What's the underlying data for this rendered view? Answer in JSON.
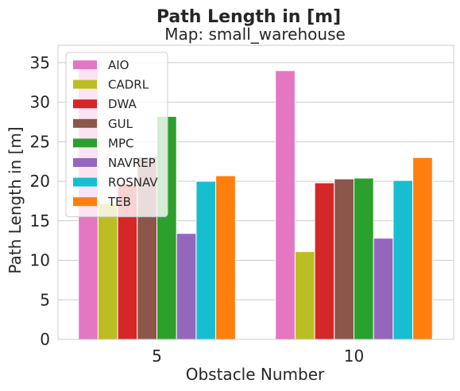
{
  "chart_data": {
    "type": "bar",
    "title": "Path Length in [m]",
    "subtitle": "Map: small_warehouse",
    "xlabel": "Obstacle Number",
    "ylabel": "Path Length in [m]",
    "categories": [
      "5",
      "10"
    ],
    "ylim": [
      0,
      37.2
    ],
    "yticks": [
      0,
      5,
      10,
      15,
      20,
      25,
      30,
      35
    ],
    "grid": true,
    "legend_position": "top-left",
    "series": [
      {
        "name": "AIO",
        "color": "#e377c2",
        "values": [
          34.3,
          34.0
        ]
      },
      {
        "name": "CADRL",
        "color": "#bcbd22",
        "values": [
          17.2,
          11.1
        ]
      },
      {
        "name": "DWA",
        "color": "#d62728",
        "values": [
          19.7,
          19.8
        ]
      },
      {
        "name": "GUL",
        "color": "#8c564b",
        "values": [
          23.1,
          20.3
        ]
      },
      {
        "name": "MPC",
        "color": "#2ca02c",
        "values": [
          28.2,
          20.4
        ]
      },
      {
        "name": "NAVREP",
        "color": "#9467bd",
        "values": [
          13.4,
          12.8
        ]
      },
      {
        "name": "ROSNAV",
        "color": "#17becf",
        "values": [
          20.0,
          20.1
        ]
      },
      {
        "name": "TEB",
        "color": "#ff7f0e",
        "values": [
          20.7,
          23.0
        ]
      }
    ]
  }
}
